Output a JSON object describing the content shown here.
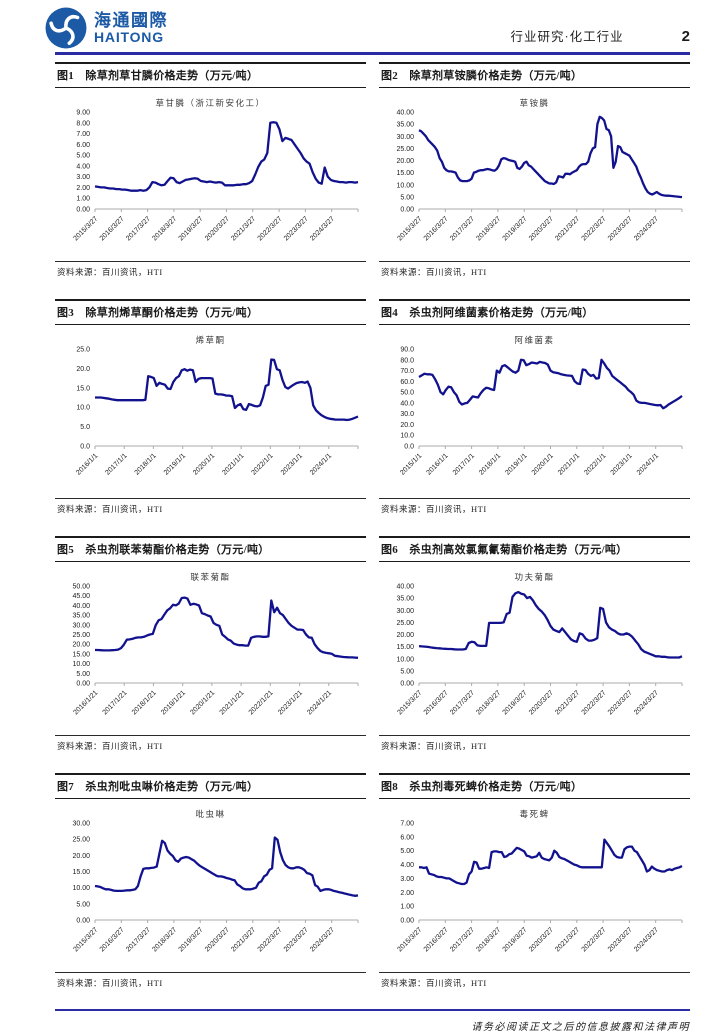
{
  "theme": {
    "line_color": "#12128F",
    "rule_color": "#2B2BA3",
    "logo_color": "#1C5AA6"
  },
  "header": {
    "logo_cn": "海通國際",
    "logo_en": "HAITONG",
    "section": "行业研究·化工行业",
    "page_number": "2"
  },
  "footer": {
    "disclaimer": "请务必阅读正文之后的信息披露和法律声明"
  },
  "chart_data": [
    {
      "type": "line",
      "panel_title": "图1　除草剂草甘膦价格走势（万元/吨）",
      "title": "草甘膦（浙江新安化工）",
      "ylim": [
        0,
        9
      ],
      "y_ticks": [
        "9.00",
        "8.00",
        "7.00",
        "6.00",
        "5.00",
        "4.00",
        "3.00",
        "2.00",
        "1.00",
        "0.00"
      ],
      "x_labels": [
        "2015/3/27",
        "2016/3/27",
        "2017/3/27",
        "2018/3/27",
        "2019/3/27",
        "2020/3/27",
        "2021/3/27",
        "2022/3/27",
        "2023/3/27",
        "2024/3/27"
      ],
      "series": [
        {
          "name": "草甘膦（浙江新安化工）",
          "values": [
            2.1,
            2.05,
            2.0,
            2.0,
            1.95,
            1.9,
            1.9,
            1.85,
            1.85,
            1.8,
            1.8,
            1.75,
            1.7,
            1.7,
            1.7,
            1.75,
            1.7,
            1.75,
            2.0,
            2.5,
            2.45,
            2.3,
            2.2,
            2.25,
            2.6,
            2.9,
            2.85,
            2.5,
            2.4,
            2.55,
            2.7,
            2.75,
            2.8,
            2.85,
            2.8,
            2.6,
            2.55,
            2.5,
            2.55,
            2.5,
            2.45,
            2.5,
            2.45,
            2.2,
            2.2,
            2.2,
            2.2,
            2.25,
            2.25,
            2.3,
            2.3,
            2.4,
            2.6,
            3.2,
            3.9,
            4.4,
            4.6,
            5.2,
            8.0,
            8.05,
            8.0,
            7.4,
            6.3,
            6.6,
            6.5,
            6.4,
            6.0,
            5.6,
            5.2,
            4.7,
            4.4,
            4.2,
            3.4,
            2.8,
            2.45,
            2.35,
            3.85,
            3.0,
            2.7,
            2.6,
            2.55,
            2.5,
            2.5,
            2.45,
            2.5,
            2.5,
            2.45,
            2.5
          ]
        }
      ],
      "source": "资料来源：百川资讯，HTI"
    },
    {
      "type": "line",
      "panel_title": "图2　除草剂草铵膦价格走势（万元/吨）",
      "title": "草铵膦",
      "ylim": [
        0,
        40
      ],
      "y_ticks": [
        "40.00",
        "35.00",
        "30.00",
        "25.00",
        "20.00",
        "15.00",
        "10.00",
        "5.00",
        "0.00"
      ],
      "x_labels": [
        "2015/3/27",
        "2016/3/27",
        "2017/3/27",
        "2018/3/27",
        "2019/3/27",
        "2020/3/27",
        "2021/3/27",
        "2022/3/27",
        "2023/3/27",
        "2024/3/27"
      ],
      "series": [
        {
          "name": "草铵膦",
          "values": [
            32.5,
            32,
            31,
            30,
            28.5,
            27.5,
            26.5,
            25.5,
            24,
            21,
            19.5,
            17,
            16,
            15.5,
            15.5,
            15.3,
            15,
            13,
            11.8,
            11.5,
            11.5,
            11.5,
            11.8,
            12.5,
            15,
            15.3,
            15.8,
            16,
            16,
            16.3,
            16.5,
            16.3,
            16,
            15.8,
            16.5,
            18,
            20.5,
            21,
            20.8,
            20.3,
            20,
            19.8,
            19.5,
            17,
            16.5,
            17.5,
            19,
            19.5,
            18,
            17.5,
            16.5,
            15.5,
            14.5,
            13.5,
            12.5,
            11.5,
            11,
            10.5,
            10.5,
            10.3,
            11,
            13.5,
            13.3,
            13,
            14.5,
            14.5,
            14.3,
            15,
            15.5,
            16,
            17.5,
            18.3,
            18.5,
            18.5,
            19.5,
            23,
            25,
            25.5,
            35,
            38,
            37.5,
            36.5,
            33,
            32.5,
            30,
            17,
            19.5,
            26,
            25.5,
            23.5,
            23,
            22.5,
            22,
            20.5,
            19,
            17.5,
            15,
            13,
            10.5,
            8.5,
            7,
            6.3,
            6,
            6.5,
            7,
            6.3,
            5.8,
            5.6,
            5.5,
            5.5,
            5.4,
            5.3,
            5.2,
            5.1,
            5,
            4.9
          ]
        }
      ],
      "source": "资料来源：百川资讯，HTI"
    },
    {
      "type": "line",
      "panel_title": "图3　除草剂烯草酮价格走势（万元/吨）",
      "title": "烯草酮",
      "ylim": [
        0,
        25
      ],
      "y_ticks": [
        "25.0",
        "20.0",
        "15.0",
        "10.0",
        "5.0",
        "0.0"
      ],
      "x_labels": [
        "2016/1/1",
        "2017/1/1",
        "2018/1/1",
        "2019/1/1",
        "2020/1/1",
        "2021/1/1",
        "2022/1/1",
        "2023/1/1",
        "2024/1/1"
      ],
      "series": [
        {
          "name": "烯草酮",
          "values": [
            12.5,
            12.5,
            12.5,
            12.4,
            12.3,
            12.2,
            12,
            11.9,
            11.8,
            11.8,
            11.8,
            11.8,
            11.8,
            11.8,
            11.8,
            11.8,
            11.8,
            11.8,
            11.9,
            18,
            17.8,
            17.5,
            15.5,
            16.3,
            16,
            15.8,
            14.8,
            14.7,
            16.5,
            17.5,
            18,
            19.5,
            19.8,
            19.4,
            19.7,
            19.5,
            16.5,
            17.3,
            17.5,
            17.5,
            17.5,
            17.5,
            17.4,
            13.5,
            13.3,
            13.3,
            13.2,
            13,
            13,
            12.8,
            9.8,
            10.5,
            10.8,
            9.5,
            9.3,
            10.8,
            10.6,
            10.3,
            10.2,
            10.5,
            12.5,
            15.5,
            15.8,
            22.3,
            22.2,
            19.8,
            19.5,
            17,
            15.2,
            14.8,
            15.3,
            15.8,
            16.2,
            16.4,
            16.5,
            16.3,
            16.6,
            15,
            10.5,
            9.2,
            8.5,
            7.9,
            7.5,
            7.2,
            7,
            6.9,
            6.8,
            6.8,
            6.8,
            6.8,
            6.7,
            6.8,
            7,
            7.3,
            7.6
          ]
        }
      ],
      "source": "资料来源：百川资讯，HTI"
    },
    {
      "type": "line",
      "panel_title": "图4　杀虫剂阿维菌素价格走势（万元/吨）",
      "title": "阿维菌素",
      "ylim": [
        0,
        90
      ],
      "y_ticks": [
        "90.0",
        "80.0",
        "70.0",
        "60.0",
        "50.0",
        "40.0",
        "30.0",
        "20.0",
        "10.0",
        "0.0"
      ],
      "x_labels": [
        "2015/1/1",
        "2016/1/1",
        "2017/1/1",
        "2018/1/1",
        "2019/1/1",
        "2020/1/1",
        "2021/1/1",
        "2022/1/1",
        "2023/1/1",
        "2024/1/1"
      ],
      "series": [
        {
          "name": "阿维菌素",
          "values": [
            64,
            65.5,
            67,
            66.5,
            66.5,
            66,
            62,
            57,
            50,
            48,
            52,
            55,
            54.5,
            50,
            47,
            41,
            38.5,
            39.5,
            40,
            43,
            46,
            45.5,
            45,
            49,
            52,
            54,
            53.5,
            52.5,
            52,
            70,
            68,
            74,
            75,
            73,
            71,
            69,
            68,
            70,
            80,
            79.5,
            75,
            76,
            77.5,
            77,
            76.5,
            78,
            77.5,
            77,
            75.5,
            70,
            68.5,
            68,
            67.5,
            66.5,
            66,
            65.5,
            65.3,
            65,
            60,
            58,
            57.5,
            71,
            70.5,
            67,
            65,
            66,
            62.5,
            63,
            80,
            76.5,
            72.5,
            70,
            65,
            63,
            61,
            59,
            57,
            55,
            52,
            50,
            47.5,
            42,
            40.5,
            40,
            40,
            39.5,
            39,
            38.5,
            38,
            37.8,
            38,
            35,
            36.5,
            38.5,
            40,
            41.5,
            43,
            44.5,
            46.5
          ]
        }
      ],
      "source": "资料来源：百川资讯，HTI"
    },
    {
      "type": "line",
      "panel_title": "图5　杀虫剂联苯菊酯价格走势（万元/吨）",
      "title": "联苯菊酯",
      "ylim": [
        0,
        50
      ],
      "y_ticks": [
        "50.00",
        "45.00",
        "40.00",
        "35.00",
        "30.00",
        "25.00",
        "20.00",
        "15.00",
        "10.00",
        "5.00",
        "0.00"
      ],
      "x_labels": [
        "2016/1/21",
        "2017/1/21",
        "2018/1/21",
        "2019/1/21",
        "2020/1/21",
        "2021/1/21",
        "2022/1/21",
        "2023/1/21",
        "2024/1/21"
      ],
      "series": [
        {
          "name": "联苯菊酯",
          "values": [
            17,
            17,
            16.9,
            16.8,
            16.8,
            16.8,
            16.9,
            17,
            17.2,
            18,
            19.8,
            22.3,
            22.5,
            22.8,
            23.3,
            23.5,
            23.5,
            23.8,
            24.5,
            25,
            25.3,
            29.8,
            32.3,
            33,
            35.3,
            37.5,
            38.5,
            40.3,
            40,
            41,
            43.8,
            44,
            43.5,
            40.3,
            40.8,
            40.5,
            40,
            36,
            35.5,
            34.8,
            34.3,
            31,
            30,
            29.5,
            25,
            23.8,
            22.5,
            21.8,
            20.3,
            19.8,
            19.5,
            19.5,
            19.3,
            19.3,
            23.3,
            23.8,
            24,
            24,
            23.8,
            23.8,
            24,
            42.5,
            36.5,
            38.8,
            36,
            35,
            33,
            31,
            29.5,
            28.5,
            27.5,
            27.5,
            27.3,
            25,
            23.5,
            23.3,
            20,
            18,
            16.5,
            15.8,
            15.5,
            15.3,
            15,
            14,
            13.8,
            13.6,
            13.4,
            13.3,
            13.2,
            13.2,
            13.1,
            13
          ]
        }
      ],
      "source": "资料来源：百川资讯，HTI"
    },
    {
      "type": "line",
      "panel_title": "图6　杀虫剂高效氯氟氰菊酯价格走势（万元/吨）",
      "title": "功夫菊酯",
      "ylim": [
        0,
        40
      ],
      "y_ticks": [
        "40.00",
        "35.00",
        "30.00",
        "25.00",
        "20.00",
        "15.00",
        "10.00",
        "5.00",
        "0.00"
      ],
      "x_labels": [
        "2015/3/27",
        "2016/3/27",
        "2017/3/27",
        "2018/3/27",
        "2019/3/27",
        "2020/3/27",
        "2021/3/27",
        "2022/3/27",
        "2023/3/27",
        "2024/3/27"
      ],
      "series": [
        {
          "name": "功夫菊酯",
          "values": [
            15.2,
            15.1,
            15,
            14.9,
            14.7,
            14.5,
            14.4,
            14.3,
            14.2,
            14.1,
            14,
            14,
            13.9,
            13.8,
            13.8,
            13.8,
            14,
            16.5,
            17,
            16.8,
            15.5,
            15.3,
            15.3,
            15.3,
            24.8,
            24.8,
            24.8,
            24.8,
            24.8,
            25,
            28.5,
            29,
            35.5,
            37,
            37.5,
            36.8,
            36.5,
            35,
            35.5,
            34,
            32,
            30.5,
            29.5,
            28,
            26,
            23.5,
            22,
            21.5,
            21,
            22.5,
            21,
            19.5,
            18,
            17.3,
            17,
            20.5,
            20,
            18.3,
            17.5,
            17.5,
            17.8,
            18.5,
            31,
            30.5,
            25,
            23,
            22,
            21.5,
            20.5,
            20,
            20,
            20.5,
            20,
            19,
            17.5,
            16,
            14,
            13,
            12.5,
            12,
            11.5,
            11,
            11,
            10.8,
            10.8,
            10.6,
            10.5,
            10.5,
            10.5,
            10.5,
            11
          ]
        }
      ],
      "source": "资料来源：百川资讯，HTI"
    },
    {
      "type": "line",
      "panel_title": "图7　杀虫剂吡虫啉价格走势（万元/吨）",
      "title": "吡虫啉",
      "ylim": [
        0,
        30
      ],
      "y_ticks": [
        "30.00",
        "25.00",
        "20.00",
        "15.00",
        "10.00",
        "5.00",
        "0.00"
      ],
      "x_labels": [
        "2015/3/27",
        "2016/3/27",
        "2017/3/27",
        "2018/3/27",
        "2019/3/27",
        "2020/3/27",
        "2021/3/27",
        "2022/3/27",
        "2023/3/27",
        "2024/3/27"
      ],
      "series": [
        {
          "name": "吡虫啉",
          "values": [
            10.5,
            10.4,
            10.2,
            9.8,
            9.5,
            9.5,
            9.3,
            9.1,
            9.0,
            9.0,
            9.0,
            9.1,
            9.2,
            9.2,
            9.3,
            9.5,
            10.5,
            13.5,
            15.8,
            16.0,
            16.0,
            16.1,
            16.2,
            16.5,
            20.5,
            24.5,
            23.8,
            21.5,
            20.5,
            19.8,
            18.5,
            18.0,
            19.0,
            19.3,
            19.5,
            19.3,
            18.8,
            18.3,
            17.5,
            16.8,
            16.3,
            15.8,
            15.3,
            14.8,
            14.3,
            13.8,
            13.5,
            13.5,
            13.3,
            13.0,
            12.8,
            12.5,
            12.3,
            11.0,
            10.5,
            9.8,
            9.5,
            9.5,
            9.5,
            9.7,
            10.0,
            11.5,
            12.0,
            13.5,
            14.0,
            15.5,
            16.0,
            25.5,
            24.8,
            21.0,
            18.5,
            17.0,
            16.3,
            16.0,
            16.0,
            16.3,
            16.3,
            16.0,
            15.5,
            14.5,
            14.3,
            13.8,
            10.8,
            10.3,
            9.0,
            9.3,
            9.5,
            9.5,
            9.3,
            9.0,
            8.8,
            8.6,
            8.4,
            8.2,
            8.0,
            7.8,
            7.6,
            7.5,
            7.6
          ]
        }
      ],
      "source": "资料来源：百川资讯，HTI"
    },
    {
      "type": "line",
      "panel_title": "图8　杀虫剂毒死蜱价格走势（万元/吨）",
      "title": "毒死蜱",
      "ylim": [
        0,
        7
      ],
      "y_ticks": [
        "7.00",
        "6.00",
        "5.00",
        "4.00",
        "3.00",
        "2.00",
        "1.00",
        "0.00"
      ],
      "x_labels": [
        "2015/3/27",
        "2016/3/27",
        "2017/3/27",
        "2018/3/27",
        "2019/3/27",
        "2020/3/27",
        "2021/3/27",
        "2022/3/27",
        "2023/3/27",
        "2024/3/27"
      ],
      "series": [
        {
          "name": "毒死蜱",
          "values": [
            3.8,
            3.8,
            3.75,
            3.8,
            3.35,
            3.3,
            3.25,
            3.15,
            3.1,
            3.1,
            3.05,
            3,
            3,
            2.9,
            2.8,
            2.7,
            2.65,
            2.6,
            2.6,
            2.7,
            3.3,
            3.5,
            4.2,
            4.15,
            3.7,
            3.7,
            3.75,
            3.8,
            3.75,
            4.9,
            4.95,
            4.95,
            4.9,
            4.9,
            4.55,
            4.6,
            4.75,
            4.8,
            5,
            5.2,
            5.15,
            5.05,
            4.95,
            4.65,
            4.6,
            4.5,
            4.55,
            4.6,
            4.85,
            4.5,
            4.4,
            4.35,
            4.3,
            4.5,
            5,
            4.85,
            4.55,
            4.45,
            4.4,
            4.3,
            4.2,
            4.1,
            4,
            3.95,
            3.85,
            3.8,
            3.8,
            3.8,
            3.8,
            3.8,
            3.8,
            3.8,
            3.8,
            3.8,
            5.8,
            5.55,
            5.3,
            5,
            4.7,
            4.55,
            4.5,
            4.5,
            5.1,
            5.25,
            5.3,
            5.3,
            5,
            4.9,
            4.6,
            4.3,
            4,
            3.5,
            3.6,
            3.85,
            3.7,
            3.6,
            3.55,
            3.5,
            3.5,
            3.6,
            3.65,
            3.6,
            3.7,
            3.75,
            3.8,
            3.9
          ]
        }
      ],
      "source": "资料来源：百川资讯，HTI"
    }
  ]
}
